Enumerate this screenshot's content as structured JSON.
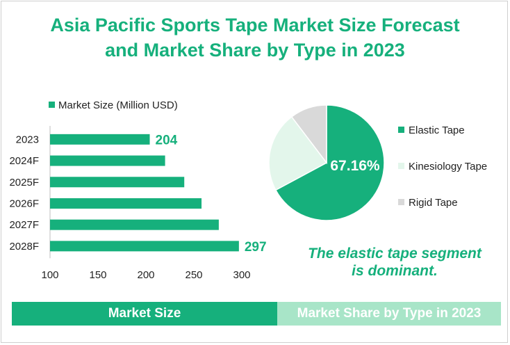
{
  "title": {
    "line1": "Asia Pacific Sports Tape Market Size Forecast",
    "line2": "and Market Share by Type in 2023"
  },
  "colors": {
    "accent": "#16b07c",
    "elastic": "#16b07c",
    "kinesiology": "#e3f6eb",
    "rigid": "#d9d9d9",
    "band_light": "#a8e5c8"
  },
  "chart_data": [
    {
      "type": "bar",
      "orientation": "horizontal",
      "categories": [
        "2023",
        "2024F",
        "2025F",
        "2026F",
        "2027F",
        "2028F"
      ],
      "series": [
        {
          "name": "Market Size (Million USD)",
          "values": [
            204,
            220,
            240,
            258,
            276,
            297
          ]
        }
      ],
      "data_labels": [
        {
          "category": "2023",
          "text": "204"
        },
        {
          "category": "2028F",
          "text": "297"
        }
      ],
      "xlim": [
        100,
        300
      ],
      "xticks": [
        "100",
        "150",
        "200",
        "250",
        "300"
      ],
      "legend": "top",
      "grid": false
    },
    {
      "type": "pie",
      "slices": [
        {
          "label": "Elastic Tape",
          "value": 67.16
        },
        {
          "label": "Kinesiology Tape",
          "value": 22.5
        },
        {
          "label": "Rigid Tape",
          "value": 10.34
        }
      ],
      "data_label": "67.16%",
      "legend": "right"
    }
  ],
  "note": {
    "line1": "The elastic tape segment",
    "line2": "is dominant."
  },
  "footer": {
    "left": "Market Size",
    "right": "Market Share by Type in 2023"
  }
}
